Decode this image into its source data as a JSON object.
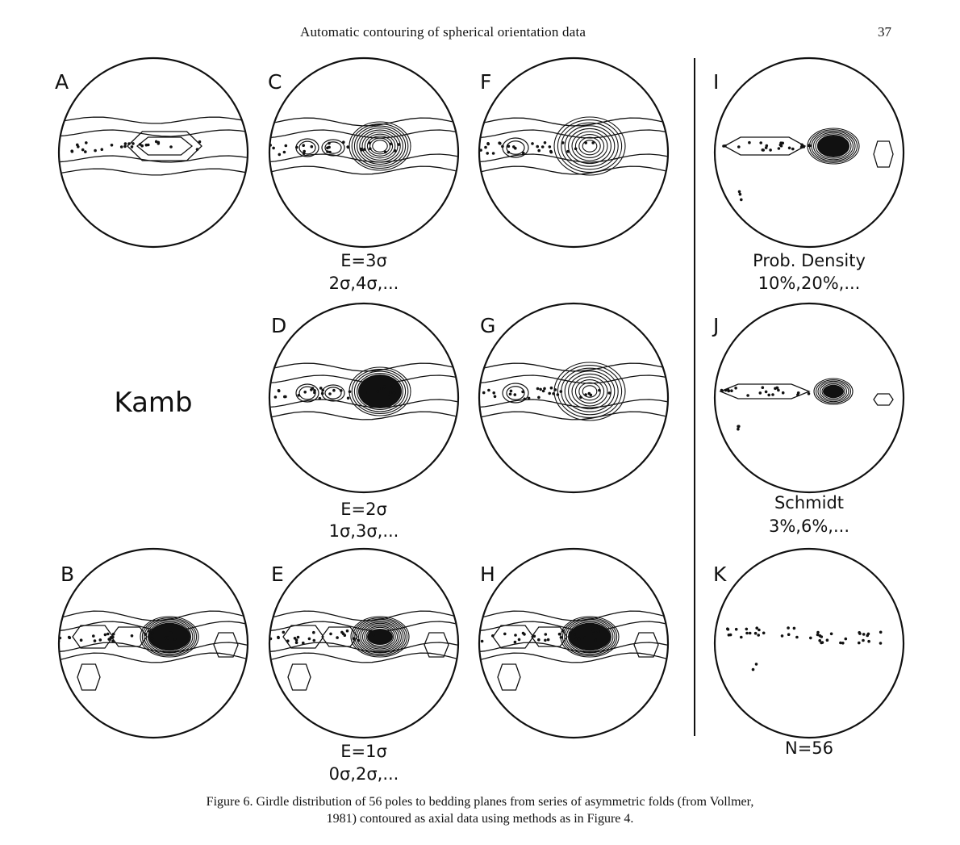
{
  "header": {
    "running_head": "Automatic contouring of spherical orientation data",
    "page_number": "37"
  },
  "figure": {
    "panels": [
      {
        "letter": "A"
      },
      {
        "letter": "B"
      },
      {
        "letter": "C"
      },
      {
        "letter": "D"
      },
      {
        "letter": "E"
      },
      {
        "letter": "F"
      },
      {
        "letter": "G"
      },
      {
        "letter": "H"
      },
      {
        "letter": "I"
      },
      {
        "letter": "J"
      },
      {
        "letter": "K"
      }
    ],
    "method_label": "Kamb",
    "column_labels": {
      "c_line1": "E=3σ",
      "c_line2": "2σ,4σ,...",
      "d_line1": "E=2σ",
      "d_line2": "1σ,3σ,...",
      "e_line1": "E=1σ",
      "e_line2": "0σ,2σ,...",
      "i_line1": "Prob. Density",
      "i_line2": "10%,20%,...",
      "j_line1": "Schmidt",
      "j_line2": "3%,6%,...",
      "k_line1": "N=56"
    }
  },
  "caption": {
    "line1": "Figure 6. Girdle distribution of 56 poles to bedding planes from series of asymmetric folds (from Vollmer,",
    "line2": "1981) contoured as axial data using methods as in Figure 4."
  }
}
